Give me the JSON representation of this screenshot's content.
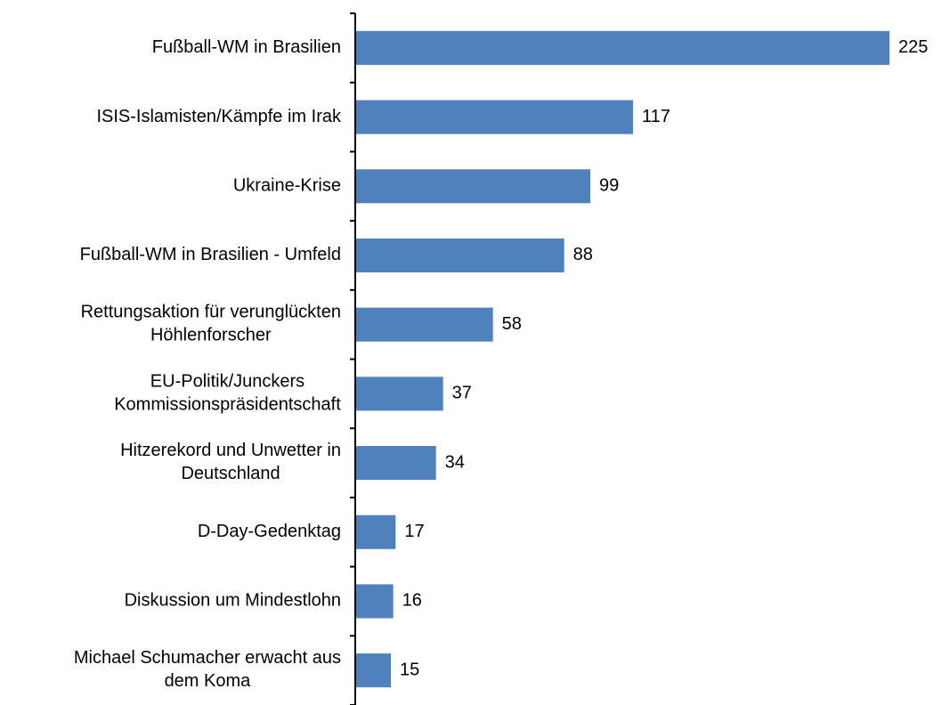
{
  "chart_data": {
    "type": "bar",
    "orientation": "horizontal",
    "color": "#4f81bd",
    "categories": [
      "Fußball-WM in Brasilien",
      "ISIS-Islamisten/Kämpfe im Irak",
      "Ukraine-Krise",
      "Fußball-WM in Brasilien - Umfeld",
      "Rettungsaktion für verunglückten\nHöhlenforscher",
      "EU-Politik/Junckers\nKommissionspräsidentschaft",
      "Hitzerekord und Unwetter in\nDeutschland",
      "D-Day-Gedenktag",
      "Diskussion um Mindestlohn",
      "Michael Schumacher erwacht aus\ndem Koma"
    ],
    "values": [
      225,
      117,
      99,
      88,
      58,
      37,
      34,
      17,
      16,
      15
    ]
  }
}
